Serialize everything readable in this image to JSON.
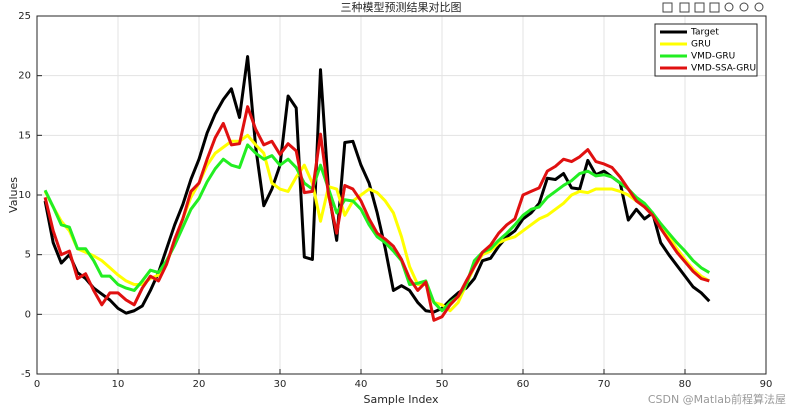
{
  "chart_data": {
    "type": "line",
    "title": "三种模型预测结果对比图",
    "x_label": "Sample Index",
    "y_label": "Values",
    "watermark": "CSDN @Matlab前程算法屋",
    "x": [
      1,
      2,
      3,
      4,
      5,
      6,
      7,
      8,
      9,
      10,
      11,
      12,
      13,
      14,
      15,
      16,
      17,
      18,
      19,
      20,
      21,
      22,
      23,
      24,
      25,
      26,
      27,
      28,
      29,
      30,
      31,
      32,
      33,
      34,
      35,
      36,
      37,
      38,
      39,
      40,
      41,
      42,
      43,
      44,
      45,
      46,
      47,
      48,
      49,
      50,
      51,
      52,
      53,
      54,
      55,
      56,
      57,
      58,
      59,
      60,
      61,
      62,
      63,
      64,
      65,
      66,
      67,
      68,
      69,
      70,
      71,
      72,
      73,
      74,
      75,
      76,
      77,
      78,
      79,
      80,
      81,
      82,
      83
    ],
    "series": [
      {
        "name": "Target",
        "color": "#000000",
        "values": [
          9.5,
          6,
          4.3,
          5,
          3.5,
          3,
          2.2,
          1.7,
          1.2,
          0.5,
          0.1,
          0.3,
          0.7,
          2,
          3.5,
          5.5,
          7.5,
          9.2,
          11.3,
          13,
          15.2,
          16.8,
          18,
          18.9,
          16.5,
          21.6,
          14,
          9.1,
          10.5,
          12.5,
          18.3,
          17.3,
          4.8,
          4.6,
          20.5,
          10.3,
          6.2,
          14.4,
          14.5,
          12.5,
          11,
          8.5,
          5.5,
          2,
          2.4,
          2,
          1,
          0.3,
          0.2,
          0.5,
          1.2,
          1.8,
          2.2,
          3,
          4.5,
          4.7,
          5.7,
          6.5,
          7,
          8,
          8.5,
          9.3,
          11.4,
          11.3,
          11.8,
          10.6,
          10.5,
          12.9,
          11.7,
          12,
          11.5,
          11,
          7.9,
          8.8,
          8,
          8.5,
          6,
          5,
          4.1,
          3.2,
          2.3,
          1.8,
          1.1
        ]
      },
      {
        "name": "GRU",
        "color": "#ffff00",
        "values": [
          10.3,
          9,
          7.8,
          7,
          5.5,
          5.2,
          4.9,
          4.5,
          3.9,
          3.3,
          2.8,
          2.5,
          2.5,
          3,
          3.3,
          4.3,
          6,
          8,
          9.8,
          11,
          12.5,
          13.5,
          14,
          14.5,
          14.5,
          15,
          14.2,
          13.5,
          11,
          10.5,
          10.3,
          11.5,
          12.5,
          11,
          7.8,
          10.7,
          10.5,
          8.3,
          9.5,
          10,
          10.5,
          10.2,
          9.5,
          8.5,
          6.5,
          4,
          2.5,
          2.5,
          1,
          0.8,
          0.3,
          1,
          2.5,
          4,
          5,
          5.3,
          6,
          6.3,
          6.5,
          7,
          7.5,
          8,
          8.3,
          8.8,
          9.3,
          10,
          10.3,
          10.2,
          10.5,
          10.5,
          10.5,
          10.3,
          10,
          9.5,
          9,
          8.4,
          7.5,
          6.5,
          5.5,
          4.6,
          3.8,
          3.2,
          2.8
        ]
      },
      {
        "name": "VMD-GRU",
        "color": "#22ee22",
        "values": [
          10.4,
          9,
          7.5,
          7.3,
          5.5,
          5.5,
          4.5,
          3.2,
          3.2,
          2.5,
          2.2,
          2,
          2.8,
          3.7,
          3.5,
          4.5,
          5.8,
          7.3,
          8.8,
          9.7,
          11.1,
          12.2,
          13,
          12.5,
          12.3,
          14.2,
          13.5,
          13,
          13.3,
          12.5,
          13,
          12.3,
          11,
          10.5,
          12.5,
          10.5,
          8.5,
          9.6,
          9.5,
          8.8,
          7.5,
          6.5,
          6,
          5.3,
          4.5,
          2.5,
          2.6,
          2.8,
          1,
          0.3,
          1,
          1.5,
          2.5,
          4.5,
          5.2,
          5.5,
          6.2,
          6.8,
          7.5,
          8.3,
          8.8,
          9,
          9.8,
          10.3,
          10.8,
          11.2,
          11.8,
          12,
          11.6,
          11.7,
          11.5,
          11,
          10.5,
          9.8,
          9.3,
          8.5,
          7.6,
          6.8,
          6,
          5.3,
          4.5,
          3.9,
          3.5
        ]
      },
      {
        "name": "VMD-SSA-GRU",
        "color": "#e01010",
        "values": [
          9.8,
          7,
          5,
          5.3,
          3,
          3.4,
          2,
          0.8,
          1.8,
          1.8,
          1.2,
          0.8,
          2.2,
          3.2,
          2.8,
          4.2,
          6.3,
          8,
          10.3,
          11,
          13,
          14.8,
          16,
          14.2,
          14.3,
          17.4,
          15.5,
          14.2,
          14.5,
          13.4,
          14.3,
          13.7,
          10.2,
          10.3,
          15.1,
          10,
          6.8,
          10.8,
          10.5,
          9.5,
          8,
          6.8,
          6.3,
          5.7,
          4.6,
          3,
          2,
          2.7,
          -0.5,
          -0.2,
          0.8,
          1.5,
          2.8,
          4,
          5.2,
          5.8,
          6.8,
          7.5,
          8,
          10,
          10.3,
          10.6,
          12,
          12.4,
          13,
          12.8,
          13.2,
          13.8,
          12.8,
          12.6,
          12.3,
          11.5,
          10.5,
          9.5,
          9,
          8.3,
          7.2,
          6.2,
          5.2,
          4.4,
          3.6,
          3,
          2.8
        ]
      }
    ],
    "xlim": [
      0,
      90
    ],
    "xticks": [
      0,
      10,
      20,
      30,
      40,
      50,
      60,
      70,
      80,
      90
    ],
    "ylim": [
      -5,
      25
    ],
    "yticks": [
      -5,
      0,
      5,
      10,
      15,
      20,
      25
    ],
    "grid": true,
    "legend_position": "northeast"
  }
}
